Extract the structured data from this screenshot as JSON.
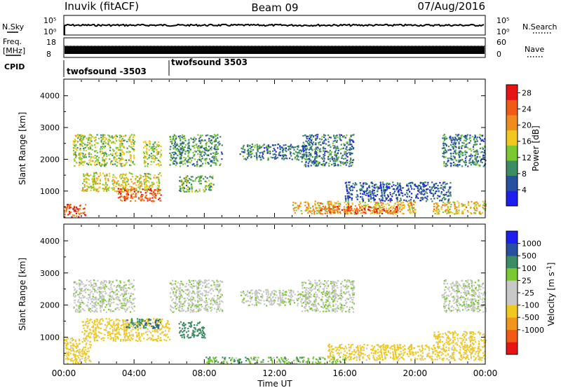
{
  "header": {
    "station": "Inuvik (fitACF)",
    "beam": "Beam 09",
    "date": "07/Aug/2016"
  },
  "noise_panel": {
    "left_label": "N.Sky",
    "right_label": "N.Search",
    "left_ticks": [
      "10^5",
      "10^0"
    ],
    "right_ticks": [
      "10^5",
      "10^0"
    ]
  },
  "freq_panel": {
    "left_label": "Freq.",
    "left_unit": "[MHz]",
    "left_ticks": [
      "18",
      "8"
    ],
    "right_label": "Nave",
    "right_ticks": [
      "60",
      "0"
    ]
  },
  "cpid": {
    "label": "CPID",
    "segments": [
      {
        "name": "twofsound -3503",
        "start_hour": 0
      },
      {
        "name": "twofsound 3503",
        "start_hour": 6
      }
    ]
  },
  "colors": {
    "power": [
      "#1e1ef0",
      "#2850a0",
      "#3c8c64",
      "#7cc832",
      "#f0c81e",
      "#f08c1e",
      "#f05a14",
      "#e61414"
    ],
    "velocity": [
      "#e61414",
      "#f05a14",
      "#f0961e",
      "#f0c81e",
      "#c8c8c8",
      "#c8c8c8",
      "#7cc832",
      "#3c8c64",
      "#2850a0",
      "#1e1ef0"
    ]
  },
  "chart_data": [
    {
      "type": "heatmap",
      "ylabel": "Slant Range [km]",
      "xlabel": "",
      "ylim": [
        180,
        4500
      ],
      "xlim": [
        0,
        24
      ],
      "yticks": [
        1000,
        2000,
        3000,
        4000
      ],
      "colorbar": {
        "label": "Power [dB]",
        "ticks": [
          4,
          8,
          12,
          16,
          20,
          24,
          28
        ],
        "range": [
          0,
          30
        ]
      },
      "x_tick_labels": [],
      "regions": [
        {
          "t0": 0.0,
          "t1": 1.2,
          "r0": 200,
          "r1": 600,
          "v": 26
        },
        {
          "t0": 0.5,
          "t1": 4.0,
          "r0": 1800,
          "r1": 2800,
          "v": 14
        },
        {
          "t0": 1.0,
          "t1": 5.5,
          "r0": 1000,
          "r1": 1600,
          "v": 16
        },
        {
          "t0": 3.0,
          "t1": 5.5,
          "r0": 700,
          "r1": 1100,
          "v": 24
        },
        {
          "t0": 4.5,
          "t1": 5.5,
          "r0": 1800,
          "r1": 2600,
          "v": 14
        },
        {
          "t0": 6.0,
          "t1": 9.0,
          "r0": 1800,
          "r1": 2800,
          "v": 10
        },
        {
          "t0": 6.5,
          "t1": 8.5,
          "r0": 1000,
          "r1": 1500,
          "v": 12
        },
        {
          "t0": 10.0,
          "t1": 14.0,
          "r0": 2000,
          "r1": 2500,
          "v": 8
        },
        {
          "t0": 13.5,
          "t1": 16.5,
          "r0": 1800,
          "r1": 2800,
          "v": 8
        },
        {
          "t0": 13.0,
          "t1": 20.0,
          "r0": 300,
          "r1": 700,
          "v": 18
        },
        {
          "t0": 14.5,
          "t1": 19.0,
          "r0": 300,
          "r1": 550,
          "v": 24
        },
        {
          "t0": 16.0,
          "t1": 22.0,
          "r0": 700,
          "r1": 1300,
          "v": 6
        },
        {
          "t0": 21.5,
          "t1": 24.0,
          "r0": 1800,
          "r1": 2800,
          "v": 8
        },
        {
          "t0": 21.0,
          "t1": 24.0,
          "r0": 300,
          "r1": 700,
          "v": 18
        }
      ]
    },
    {
      "type": "heatmap",
      "ylabel": "Slant Range [km]",
      "xlabel": "Time UT",
      "ylim": [
        180,
        4500
      ],
      "xlim": [
        0,
        24
      ],
      "yticks": [
        1000,
        2000,
        3000,
        4000
      ],
      "colorbar": {
        "label": "Velocity [m s^-1]",
        "ticks": [
          1000,
          500,
          100,
          25,
          -25,
          -100,
          -500,
          -1000
        ]
      },
      "x_tick_labels": [
        "00:00",
        "04:00",
        "08:00",
        "12:00",
        "16:00",
        "20:00",
        "00:00"
      ],
      "regions": [
        {
          "t0": 0.0,
          "t1": 1.5,
          "r0": 200,
          "r1": 1000,
          "v": -200
        },
        {
          "t0": 0.5,
          "t1": 4.0,
          "r0": 1800,
          "r1": 2800,
          "v": 10
        },
        {
          "t0": 1.0,
          "t1": 6.0,
          "r0": 900,
          "r1": 1600,
          "v": -200
        },
        {
          "t0": 3.5,
          "t1": 5.5,
          "r0": 1300,
          "r1": 1600,
          "v": 400
        },
        {
          "t0": 6.0,
          "t1": 9.0,
          "r0": 1800,
          "r1": 2800,
          "v": 10
        },
        {
          "t0": 6.5,
          "t1": 8.0,
          "r0": 1000,
          "r1": 1500,
          "v": 300
        },
        {
          "t0": 10.0,
          "t1": 14.0,
          "r0": 2000,
          "r1": 2500,
          "v": 10
        },
        {
          "t0": 13.5,
          "t1": 16.5,
          "r0": 1800,
          "r1": 2800,
          "v": 10
        },
        {
          "t0": 15.0,
          "t1": 21.0,
          "r0": 300,
          "r1": 800,
          "v": -200
        },
        {
          "t0": 8.0,
          "t1": 16.0,
          "r0": 200,
          "r1": 400,
          "v": 80
        },
        {
          "t0": 21.5,
          "t1": 24.0,
          "r0": 1800,
          "r1": 2800,
          "v": 10
        },
        {
          "t0": 21.0,
          "t1": 24.0,
          "r0": 300,
          "r1": 1200,
          "v": -200
        }
      ]
    }
  ]
}
